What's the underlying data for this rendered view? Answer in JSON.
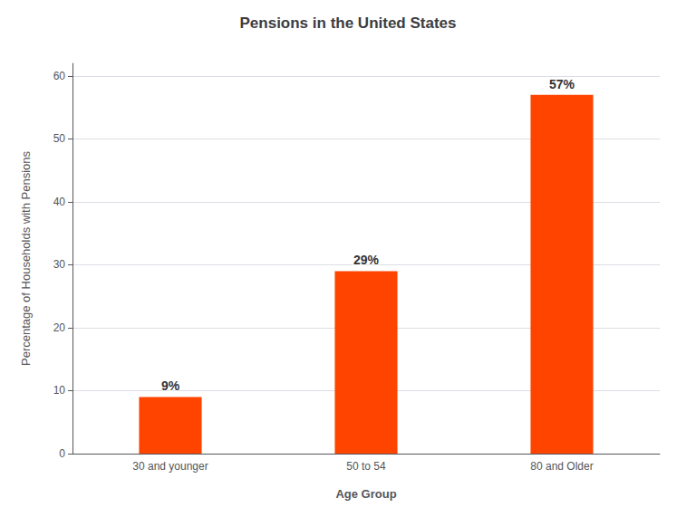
{
  "chart_data": {
    "type": "bar",
    "title": "Pensions in the United States",
    "xlabel": "Age Group",
    "ylabel": "Percentage of Households with Pensions",
    "categories": [
      "30 and younger",
      "50 to 54",
      "80 and Older"
    ],
    "values": [
      9,
      29,
      57
    ],
    "value_labels": [
      "9%",
      "29%",
      "57%"
    ],
    "data_labels": true,
    "color": "#FF4400",
    "ylim": [
      0,
      62
    ],
    "yticks": [
      0,
      10,
      20,
      30,
      40,
      50,
      60
    ],
    "grid": true
  }
}
